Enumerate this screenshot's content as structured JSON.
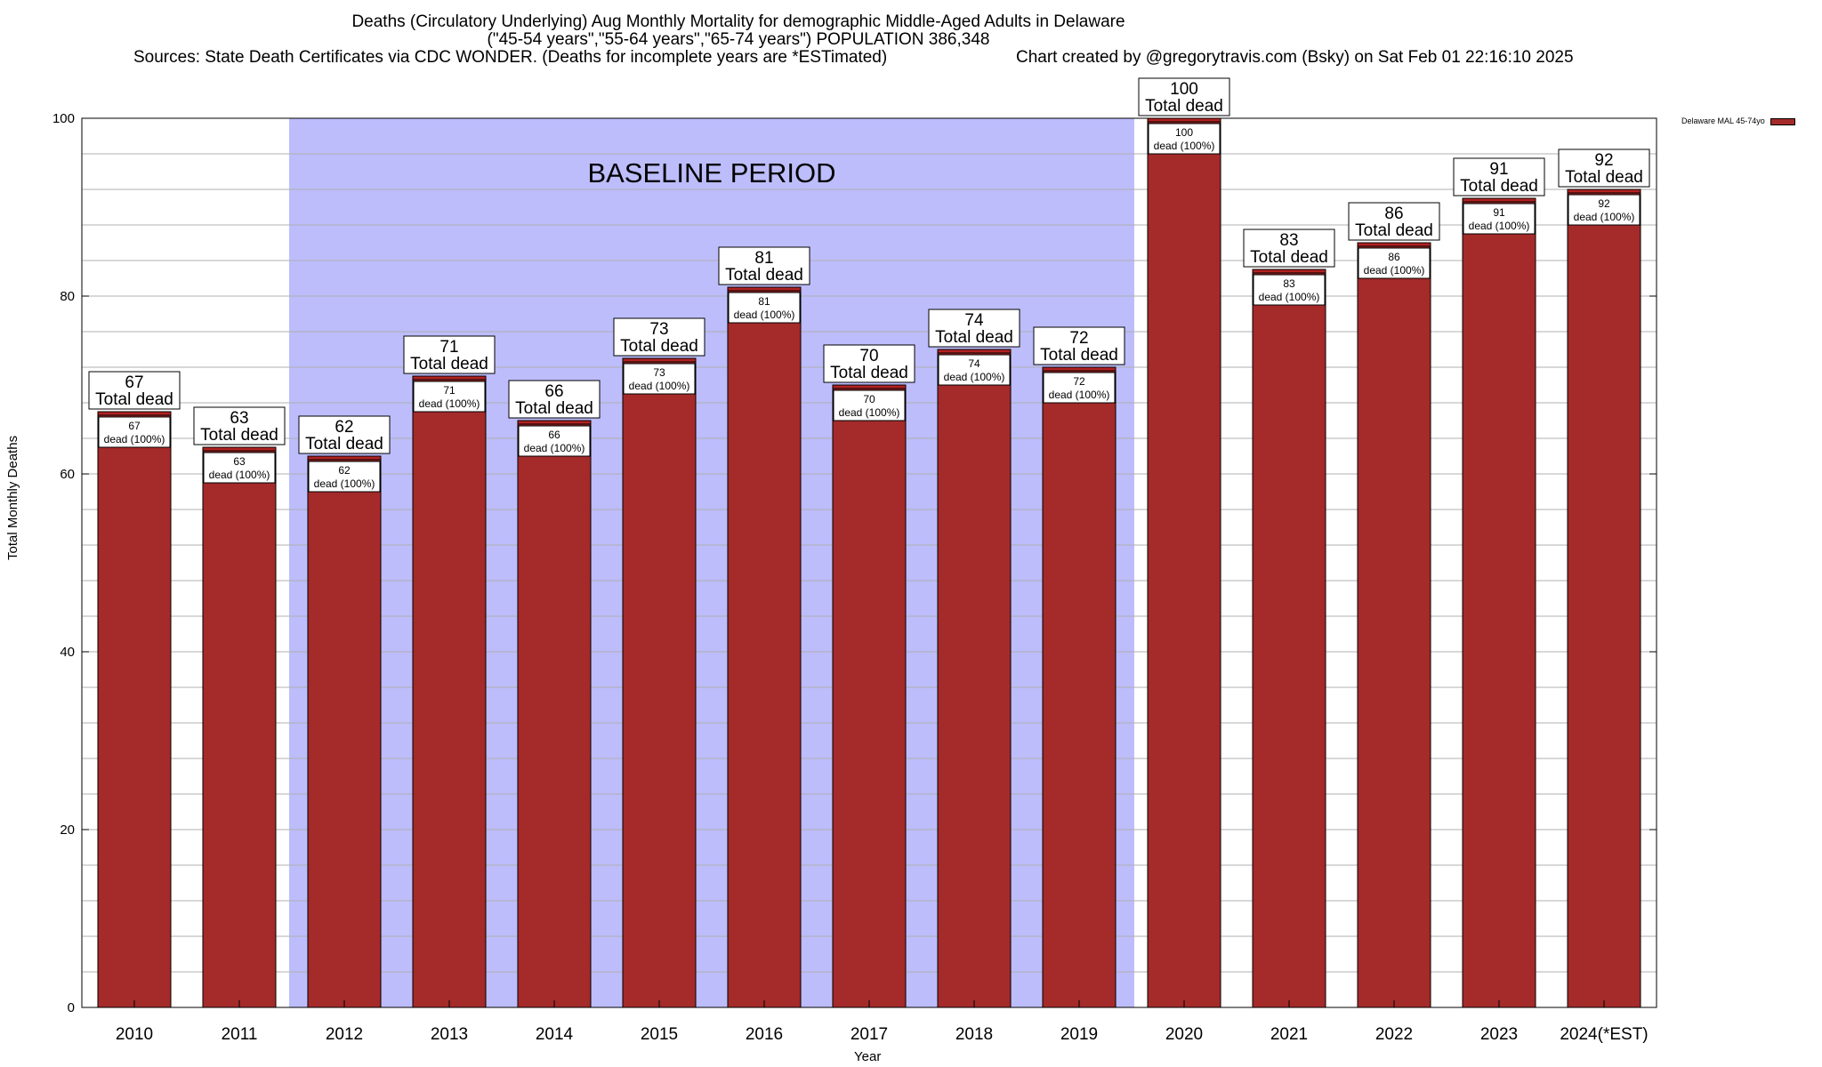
{
  "chart_data": {
    "type": "bar",
    "title": "Deaths (Circulatory Underlying) Aug Monthly Mortality for demographic Middle-Aged Adults in Delaware",
    "subtitle": "(\"45-54 years\",\"55-64 years\",\"65-74 years\") POPULATION 386,348",
    "sources": "Sources: State Death Certificates via CDC WONDER. (Deaths for incomplete years are *ESTimated)",
    "credit": "Chart created by @gregorytravis.com (Bsky) on Sat Feb 01 22:16:10 2025",
    "xlabel": "Year",
    "ylabel": "Total Monthly Deaths",
    "ylim": [
      0,
      100
    ],
    "yticks": [
      0,
      20,
      40,
      60,
      80,
      100
    ],
    "categories": [
      "2010",
      "2011",
      "2012",
      "2013",
      "2014",
      "2015",
      "2016",
      "2017",
      "2018",
      "2019",
      "2020",
      "2021",
      "2022",
      "2023",
      "2024(*EST)"
    ],
    "values": [
      67,
      63,
      62,
      71,
      66,
      73,
      81,
      70,
      74,
      72,
      100,
      83,
      86,
      91,
      92
    ],
    "top_label_suffix": "Total dead",
    "inner_label_suffix": "dead (100%)",
    "baseline": {
      "label": "BASELINE PERIOD",
      "from": "2012",
      "to": "2019",
      "color": "#bdbdfc"
    },
    "legend": {
      "label": "Delaware MAL 45-74yo",
      "position": "top-right"
    },
    "bar_color": "#a52a2a",
    "grid": true
  }
}
